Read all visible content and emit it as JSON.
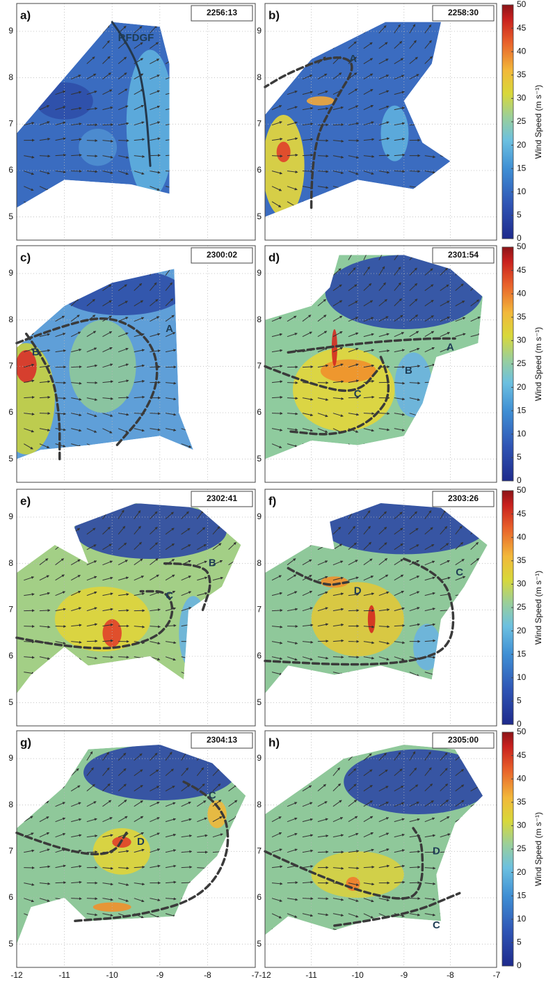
{
  "chart_data": [
    {
      "type": "heatmap",
      "panel_label": "a)",
      "time": "2256:13",
      "annotations": [
        "RFDGF"
      ],
      "xlim": [
        -12,
        -7
      ],
      "ylim": [
        4.5,
        9.6
      ],
      "xticks": [
        -12,
        -11,
        -10,
        -9,
        -8,
        -7
      ],
      "yticks": [
        5,
        6,
        7,
        8,
        9
      ]
    },
    {
      "type": "heatmap",
      "panel_label": "b)",
      "time": "2258:30",
      "annotations": [
        "A"
      ],
      "xlim": [
        -12,
        -7
      ],
      "ylim": [
        4.5,
        9.6
      ],
      "xticks": [
        -12,
        -11,
        -10,
        -9,
        -8,
        -7
      ],
      "yticks": [
        5,
        6,
        7,
        8,
        9
      ],
      "colorbar": {
        "label": "Wind Speed (m s⁻¹)",
        "lim": [
          0,
          50
        ],
        "ticks": [
          0,
          5,
          10,
          15,
          20,
          25,
          30,
          35,
          40,
          45,
          50
        ]
      }
    },
    {
      "type": "heatmap",
      "panel_label": "c)",
      "time": "2300:02",
      "annotations": [
        "A",
        "B"
      ],
      "xlim": [
        -12,
        -7
      ],
      "ylim": [
        4.5,
        9.6
      ],
      "xticks": [
        -12,
        -11,
        -10,
        -9,
        -8,
        -7
      ],
      "yticks": [
        5,
        6,
        7,
        8,
        9
      ]
    },
    {
      "type": "heatmap",
      "panel_label": "d)",
      "time": "2301:54",
      "annotations": [
        "A",
        "B",
        "C"
      ],
      "xlim": [
        -12,
        -7
      ],
      "ylim": [
        4.5,
        9.6
      ],
      "xticks": [
        -12,
        -11,
        -10,
        -9,
        -8,
        -7
      ],
      "yticks": [
        5,
        6,
        7,
        8,
        9
      ],
      "colorbar": {
        "label": "Wind Speed (m s⁻¹)",
        "lim": [
          0,
          50
        ],
        "ticks": [
          0,
          5,
          10,
          15,
          20,
          25,
          30,
          35,
          40,
          45,
          50
        ]
      }
    },
    {
      "type": "heatmap",
      "panel_label": "e)",
      "time": "2302:41",
      "annotations": [
        "B",
        "C"
      ],
      "xlim": [
        -12,
        -7
      ],
      "ylim": [
        4.5,
        9.6
      ],
      "xticks": [
        -12,
        -11,
        -10,
        -9,
        -8,
        -7
      ],
      "yticks": [
        5,
        6,
        7,
        8,
        9
      ]
    },
    {
      "type": "heatmap",
      "panel_label": "f)",
      "time": "2303:26",
      "annotations": [
        "C",
        "D"
      ],
      "xlim": [
        -12,
        -7
      ],
      "ylim": [
        4.5,
        9.6
      ],
      "xticks": [
        -12,
        -11,
        -10,
        -9,
        -8,
        -7
      ],
      "yticks": [
        5,
        6,
        7,
        8,
        9
      ],
      "colorbar": {
        "label": "Wind Speed (m s⁻¹)",
        "lim": [
          0,
          50
        ],
        "ticks": [
          0,
          5,
          10,
          15,
          20,
          25,
          30,
          35,
          40,
          45,
          50
        ]
      }
    },
    {
      "type": "heatmap",
      "panel_label": "g)",
      "time": "2304:13",
      "annotations": [
        "C",
        "D"
      ],
      "xlim": [
        -12,
        -7
      ],
      "ylim": [
        4.5,
        9.6
      ],
      "xticks": [
        -12,
        -11,
        -10,
        -9,
        -8,
        -7
      ],
      "yticks": [
        5,
        6,
        7,
        8,
        9
      ]
    },
    {
      "type": "heatmap",
      "panel_label": "h)",
      "time": "2305:00",
      "annotations": [
        "D",
        "C"
      ],
      "xlim": [
        -12,
        -7
      ],
      "ylim": [
        4.5,
        9.6
      ],
      "xticks": [
        -12,
        -11,
        -10,
        -9,
        -8,
        -7
      ],
      "yticks": [
        5,
        6,
        7,
        8,
        9
      ],
      "colorbar": {
        "label": "Wind Speed (m s⁻¹)",
        "lim": [
          0,
          50
        ],
        "ticks": [
          0,
          5,
          10,
          15,
          20,
          25,
          30,
          35,
          40,
          45,
          50
        ]
      }
    }
  ]
}
